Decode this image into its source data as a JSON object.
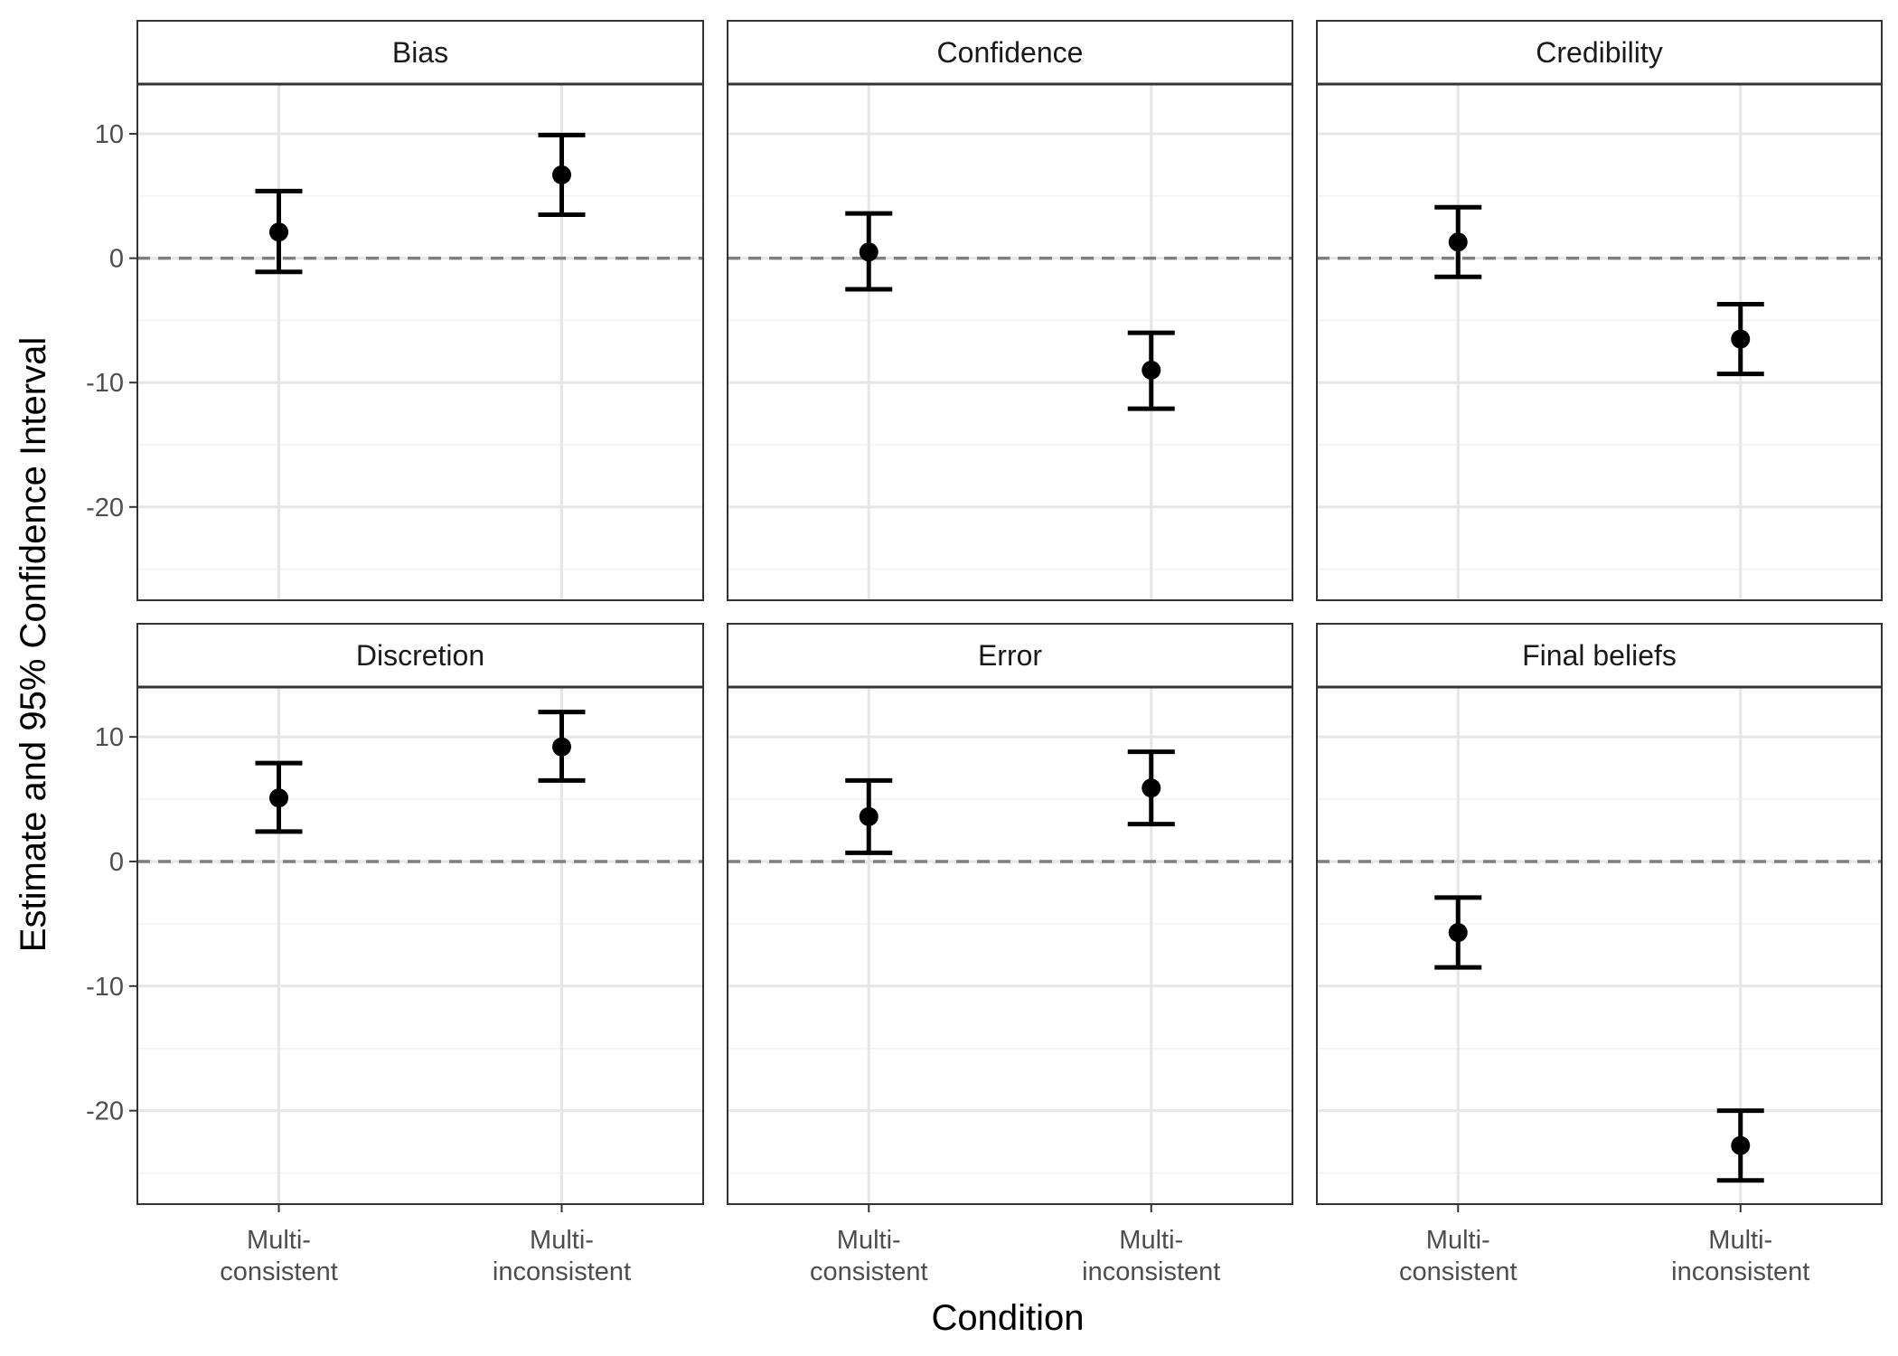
{
  "chart_data": {
    "type": "scatter",
    "subtype": "point-range with error bars, faceted 2x3",
    "xlabel": "Condition",
    "ylabel": "Estimate and 95% Confidence Interval",
    "categories": [
      [
        "Multi-",
        "consistent"
      ],
      [
        "Multi-",
        "inconsistent"
      ]
    ],
    "yticks": [
      10,
      0,
      -10,
      -20
    ],
    "ylim": [
      -27.5,
      14
    ],
    "grid": true,
    "reference_line": {
      "y": 0,
      "style": "dashed"
    },
    "facets": [
      {
        "title": "Bias",
        "points": [
          {
            "category": "Multi-consistent",
            "estimate": 2.1,
            "lower": -1.1,
            "upper": 5.4
          },
          {
            "category": "Multi-inconsistent",
            "estimate": 6.7,
            "lower": 3.5,
            "upper": 9.9
          }
        ]
      },
      {
        "title": "Confidence",
        "points": [
          {
            "category": "Multi-consistent",
            "estimate": 0.5,
            "lower": -2.5,
            "upper": 3.6
          },
          {
            "category": "Multi-inconsistent",
            "estimate": -9.0,
            "lower": -12.1,
            "upper": -6.0
          }
        ]
      },
      {
        "title": "Credibility",
        "points": [
          {
            "category": "Multi-consistent",
            "estimate": 1.3,
            "lower": -1.5,
            "upper": 4.1
          },
          {
            "category": "Multi-inconsistent",
            "estimate": -6.5,
            "lower": -9.3,
            "upper": -3.7
          }
        ]
      },
      {
        "title": "Discretion",
        "points": [
          {
            "category": "Multi-consistent",
            "estimate": 5.1,
            "lower": 2.4,
            "upper": 7.9
          },
          {
            "category": "Multi-inconsistent",
            "estimate": 9.2,
            "lower": 6.5,
            "upper": 12.0
          }
        ]
      },
      {
        "title": "Error",
        "points": [
          {
            "category": "Multi-consistent",
            "estimate": 3.6,
            "lower": 0.7,
            "upper": 6.5
          },
          {
            "category": "Multi-inconsistent",
            "estimate": 5.9,
            "lower": 3.0,
            "upper": 8.8
          }
        ]
      },
      {
        "title": "Final beliefs",
        "points": [
          {
            "category": "Multi-consistent",
            "estimate": -5.7,
            "lower": -8.5,
            "upper": -2.9
          },
          {
            "category": "Multi-inconsistent",
            "estimate": -22.8,
            "lower": -25.6,
            "upper": -20.0
          }
        ]
      }
    ]
  }
}
